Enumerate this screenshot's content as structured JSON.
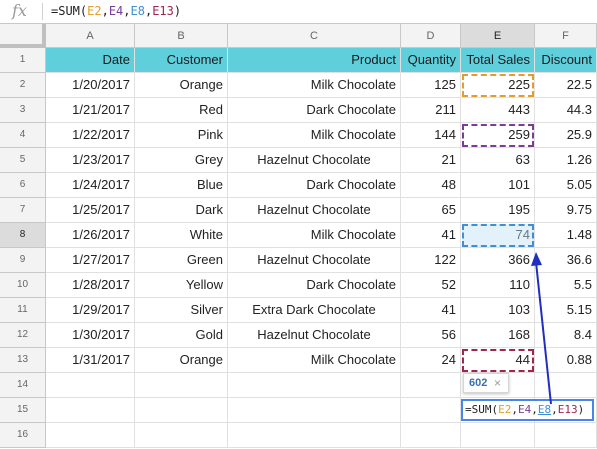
{
  "formula_bar": {
    "fx_label": "fx",
    "parts": [
      "=SUM(",
      "E2",
      ",",
      "E4",
      ",",
      "E8",
      ",",
      "E13",
      ")"
    ],
    "part_colors": [
      "#222222",
      "#e39d2a",
      "#222222",
      "#7c3c96",
      "#222222",
      "#3f8fd6",
      "#222222",
      "#a02552",
      "#222222"
    ]
  },
  "columns": [
    "A",
    "B",
    "C",
    "D",
    "E",
    "F"
  ],
  "rows": [
    "1",
    "2",
    "3",
    "4",
    "5",
    "6",
    "7",
    "8",
    "9",
    "10",
    "11",
    "12",
    "13",
    "14",
    "15",
    "16"
  ],
  "selected_row": "8",
  "selected_col": "E",
  "header": [
    "Date",
    "Customer",
    "Product",
    "Quantity",
    "Total Sales",
    "Discount"
  ],
  "data": [
    [
      "1/20/2017",
      "Orange",
      "Milk Chocolate",
      "125",
      "225",
      "22.5"
    ],
    [
      "1/21/2017",
      "Red",
      "Dark Chocolate",
      "211",
      "443",
      "44.3"
    ],
    [
      "1/22/2017",
      "Pink",
      "Milk Chocolate",
      "144",
      "259",
      "25.9"
    ],
    [
      "1/23/2017",
      "Grey",
      "Hazelnut Chocolate",
      "21",
      "63",
      "1.26"
    ],
    [
      "1/24/2017",
      "Blue",
      "Dark Chocolate",
      "48",
      "101",
      "5.05"
    ],
    [
      "1/25/2017",
      "Dark",
      "Hazelnut Chocolate",
      "65",
      "195",
      "9.75"
    ],
    [
      "1/26/2017",
      "White",
      "Milk Chocolate",
      "41",
      "74",
      "1.48"
    ],
    [
      "1/27/2017",
      "Green",
      "Hazelnut Chocolate",
      "122",
      "366",
      "36.6"
    ],
    [
      "1/28/2017",
      "Yellow",
      "Dark Chocolate",
      "52",
      "110",
      "5.5"
    ],
    [
      "1/29/2017",
      "Silver",
      "Extra Dark Chocolate",
      "41",
      "103",
      "5.15"
    ],
    [
      "1/30/2017",
      "Gold",
      "Hazelnut Chocolate",
      "56",
      "168",
      "8.4"
    ],
    [
      "1/31/2017",
      "Orange",
      "Milk Chocolate",
      "24",
      "44",
      "0.88"
    ]
  ],
  "tooltip": {
    "value": "602",
    "close": "×"
  },
  "editor": {
    "parts": [
      "=SUM(",
      "E2",
      ",",
      "E4",
      ",",
      "E8",
      ",",
      "E13",
      ")"
    ],
    "part_colors": [
      "#222222",
      "#e39d2a",
      "#222222",
      "#7c3c96",
      "#222222",
      "#3f8fd6",
      "#222222",
      "#a02552",
      "#222222"
    ]
  },
  "colors": {
    "header_fill": "#5fcfdc",
    "selection": "#4a86e8",
    "arrow": "#1f2fbf"
  }
}
